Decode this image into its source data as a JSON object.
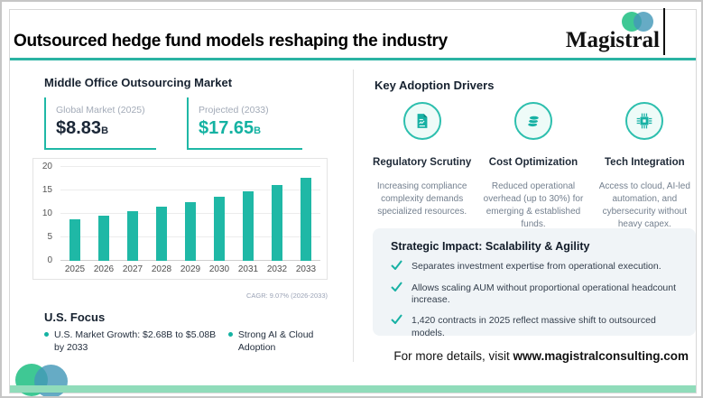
{
  "header": {
    "title": "Outsourced hedge fund models reshaping the industry",
    "brand": "Magistral"
  },
  "colors": {
    "accent": "#14b2a2",
    "bar": "#1fb8a6",
    "header_rule": "#2bb3a3",
    "footer_bar": "#90dcba",
    "logo_green": "#3fc894",
    "logo_blue": "#4499b8"
  },
  "left": {
    "heading": "Middle Office Outsourcing Market",
    "stats": [
      {
        "label": "Global Market (2025)",
        "value": "$8.83",
        "unit": "B"
      },
      {
        "label": "Projected (2033)",
        "value": "$17.65",
        "unit": "B"
      }
    ],
    "cagr_note": "CAGR: 9.07% (2026-2033)",
    "us_focus": {
      "heading": "U.S. Focus",
      "bullets": [
        "U.S. Market Growth: $2.68B to $5.08B by 2033",
        "Strong AI & Cloud Adoption"
      ]
    }
  },
  "chart_data": {
    "type": "bar",
    "categories": [
      "2025",
      "2026",
      "2027",
      "2028",
      "2029",
      "2030",
      "2031",
      "2032",
      "2033"
    ],
    "values": [
      8.83,
      9.63,
      10.5,
      11.46,
      12.5,
      13.63,
      14.87,
      16.22,
      17.65
    ],
    "title": "",
    "xlabel": "",
    "ylabel": "",
    "ylim": [
      0,
      20
    ],
    "yticks": [
      0,
      5,
      10,
      15,
      20
    ],
    "bar_color": "#1fb8a6",
    "grid": true,
    "legend": false
  },
  "drivers": {
    "heading": "Key Adoption Drivers",
    "items": [
      {
        "icon": "document-icon",
        "title": "Regulatory Scrutiny",
        "desc": "Increasing compliance complexity demands specialized resources."
      },
      {
        "icon": "coins-icon",
        "title": "Cost Optimization",
        "desc": "Reduced operational overhead (up to 30%) for emerging & established funds."
      },
      {
        "icon": "chip-icon",
        "title": "Tech Integration",
        "desc": "Access to cloud, AI-led automation, and cybersecurity without heavy capex."
      }
    ]
  },
  "impact": {
    "heading": "Strategic Impact: Scalability & Agility",
    "items": [
      "Separates investment expertise from operational execution.",
      "Allows scaling AUM without proportional operational headcount increase.",
      "1,420 contracts in 2025 reflect massive shift to outsourced models."
    ]
  },
  "footer": {
    "prefix": "For more details, visit",
    "url": "www.magistralconsulting.com"
  }
}
